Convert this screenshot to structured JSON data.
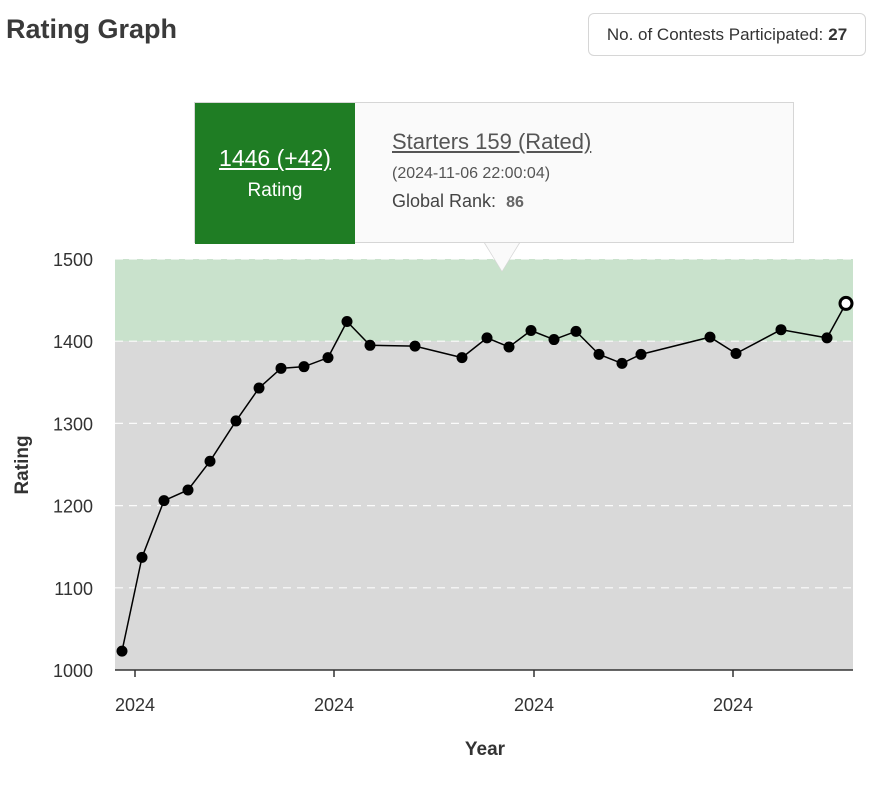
{
  "header": {
    "title": "Rating Graph",
    "contests_label": "No. of Contests Participated:",
    "contests_count": "27"
  },
  "tooltip": {
    "rating_value": "1446 (+42)",
    "rating_label": "Rating",
    "contest_name": "Starters 159 (Rated)",
    "date": "(2024-11-06 22:00:04)",
    "rank_label": "Global Rank:",
    "rank_value": "86",
    "accent_color": "#1f7d24"
  },
  "chart_data": {
    "type": "line",
    "title": "",
    "xlabel": "Year",
    "ylabel": "Rating",
    "ylim": [
      1000,
      1500
    ],
    "yticks": [
      1000,
      1100,
      1200,
      1300,
      1400,
      1500
    ],
    "xtick_labels": [
      "2024",
      "2024",
      "2024",
      "2024"
    ],
    "bands": [
      {
        "from": 1000,
        "to": 1400,
        "color": "#d9d9d9"
      },
      {
        "from": 1400,
        "to": 1500,
        "color": "#c9e2cc"
      }
    ],
    "series": [
      {
        "name": "Rating",
        "values": [
          1023,
          1137,
          1206,
          1219,
          1254,
          1303,
          1343,
          1367,
          1369,
          1380,
          1424,
          1395,
          1394,
          1380,
          1404,
          1393,
          1413,
          1402,
          1412,
          1384,
          1373,
          1384,
          1405,
          1385,
          1414,
          1404,
          1446
        ]
      }
    ],
    "highlight_index": 26
  }
}
